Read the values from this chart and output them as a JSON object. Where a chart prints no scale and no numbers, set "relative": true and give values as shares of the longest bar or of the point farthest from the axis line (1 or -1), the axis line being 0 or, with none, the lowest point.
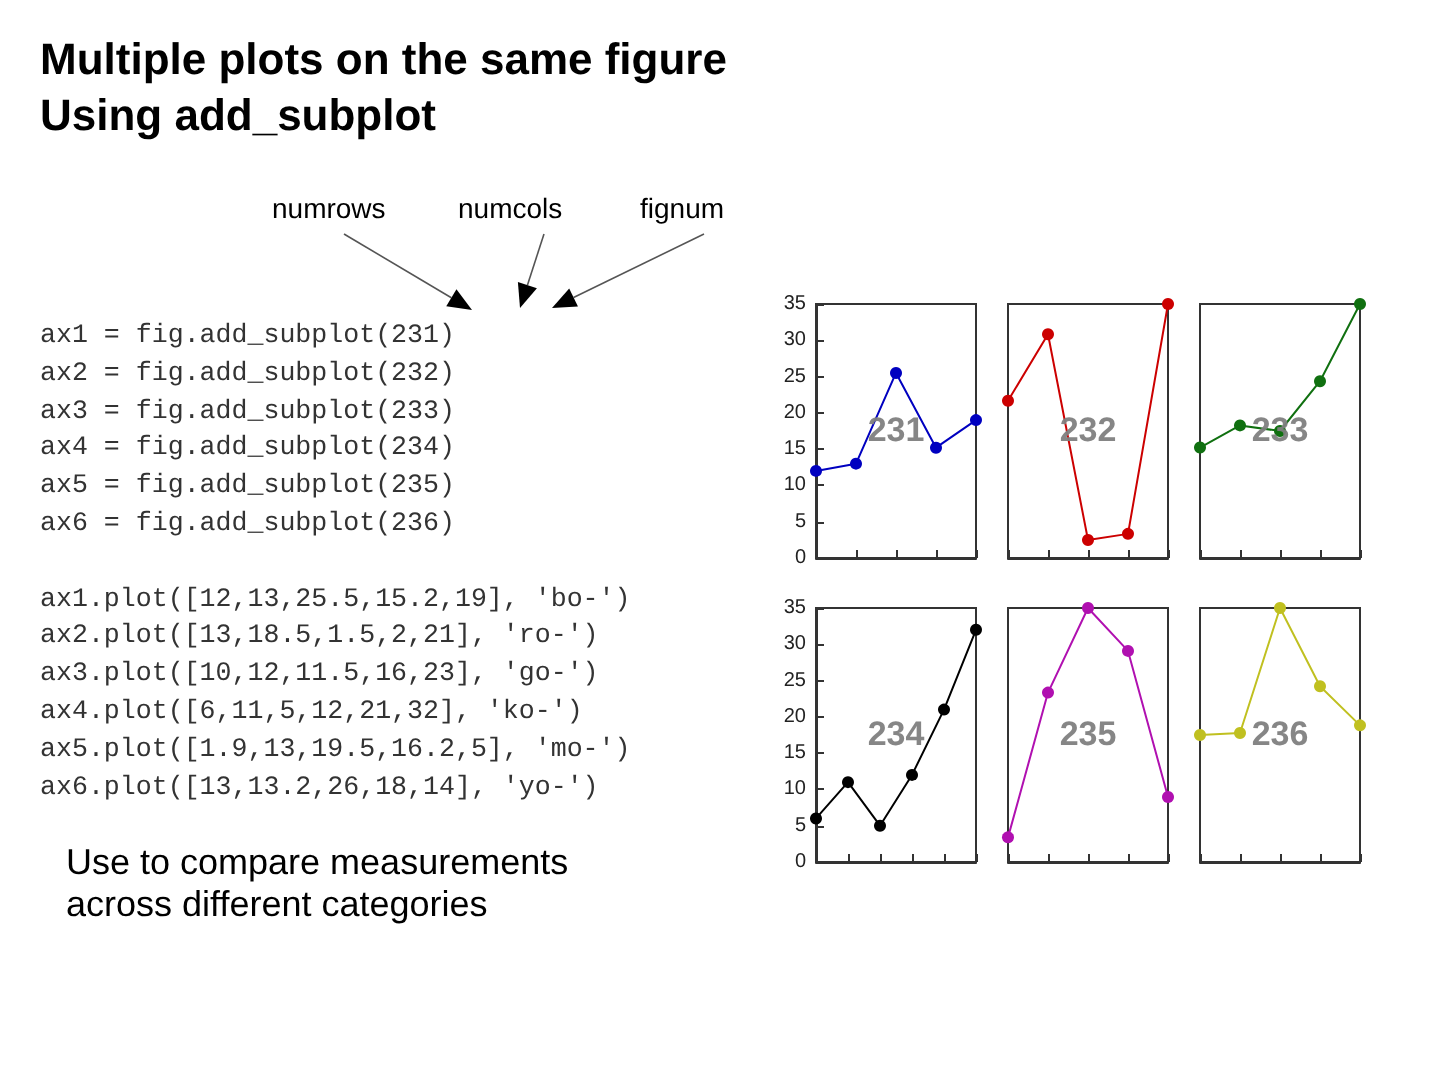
{
  "chart_data": [
    {
      "type": "other",
      "title": "Multiple plots on the same figure",
      "subtitle": "Using add_subplot",
      "annotations": [
        "numrows",
        "numcols",
        "fignum",
        "ax1 = fig.add_subplot(231)",
        "ax2 = fig.add_subplot(232)",
        "ax3 = fig.add_subplot(233)",
        "ax4 = fig.add_subplot(234)",
        "ax5 = fig.add_subplot(235)",
        "ax6 = fig.add_subplot(236)",
        "ax1.plot([12,13,25.5,15.2,19], 'bo-')",
        "ax2.plot([13,18.5,1.5,2,21], 'ro-')",
        "ax3.plot([10,12,11.5,16,23], 'go-')",
        "ax4.plot([6,11,5,12,21,32], 'ko-')",
        "ax5.plot([1.9,13,19.5,16.2,5], 'mo-')",
        "ax6.plot([13,13.2,26,18,14], 'yo-')",
        "Use to compare measurements across different categories"
      ]
    },
    {
      "type": "line",
      "categories": [
        null,
        null,
        null,
        null,
        null
      ],
      "series": [
        {
          "color": "#0000c0",
          "values": [
            12,
            13,
            25.5,
            15.2,
            19
          ]
        }
      ],
      "ylim": [
        0,
        35
      ],
      "yticks": [
        0,
        5,
        10,
        15,
        20,
        25,
        30,
        35
      ],
      "tick_labels": "y",
      "marker": "circle",
      "annotations": [
        "231"
      ]
    },
    {
      "type": "line",
      "categories": [
        null,
        null,
        null,
        null,
        null
      ],
      "series": [
        {
          "color": "#cc0000",
          "values": [
            0.619,
            0.881,
            0.071,
            0.095,
            1
          ]
        }
      ],
      "relative": true,
      "tick_labels": false,
      "marker": "circle",
      "annotations": [
        "232"
      ]
    },
    {
      "type": "line",
      "categories": [
        null,
        null,
        null,
        null,
        null
      ],
      "series": [
        {
          "color": "#107010",
          "values": [
            0.435,
            0.522,
            0.5,
            0.696,
            1
          ]
        }
      ],
      "relative": true,
      "tick_labels": false,
      "marker": "circle",
      "annotations": [
        "233"
      ]
    },
    {
      "type": "line",
      "categories": [
        null,
        null,
        null,
        null,
        null,
        null
      ],
      "series": [
        {
          "color": "#000000",
          "values": [
            6,
            11,
            5,
            12,
            21,
            32
          ]
        }
      ],
      "ylim": [
        0,
        35
      ],
      "yticks": [
        0,
        5,
        10,
        15,
        20,
        25,
        30,
        35
      ],
      "tick_labels": "y",
      "marker": "circle",
      "annotations": [
        "234"
      ]
    },
    {
      "type": "line",
      "categories": [
        null,
        null,
        null,
        null,
        null
      ],
      "series": [
        {
          "color": "#b010b0",
          "values": [
            0.097,
            0.667,
            1,
            0.831,
            0.256
          ]
        }
      ],
      "relative": true,
      "tick_labels": false,
      "marker": "circle",
      "annotations": [
        "235"
      ]
    },
    {
      "type": "line",
      "categories": [
        null,
        null,
        null,
        null,
        null
      ],
      "series": [
        {
          "color": "#c0c020",
          "values": [
            0.5,
            0.508,
            1,
            0.692,
            0.538
          ]
        }
      ],
      "relative": true,
      "tick_labels": false,
      "marker": "circle",
      "annotations": [
        "236"
      ]
    }
  ]
}
